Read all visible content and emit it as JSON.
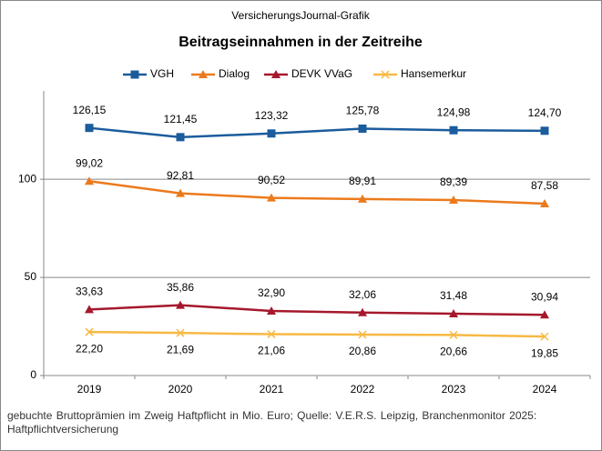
{
  "chart_data": {
    "type": "line",
    "subtitle": "VersicherungsJournal-Grafik",
    "title": "Beitragseinnahmen  in der Zeitreihe",
    "note": "gebuchte Bruttoprämien im Zweig Haftpflicht in Mio. Euro; Quelle: V.E.R.S. Leipzig, Branchenmonitor 2025: Haftpflichtversicherung",
    "categories": [
      "2019",
      "2020",
      "2021",
      "2022",
      "2023",
      "2024"
    ],
    "series": [
      {
        "name": "VGH",
        "color": "#1b5c9c",
        "marker": "square",
        "values": [
          126.15,
          121.45,
          123.32,
          125.78,
          124.98,
          124.7
        ],
        "value_labels": [
          "126,15",
          "121,45",
          "123,32",
          "125,78",
          "124,98",
          "124,70"
        ]
      },
      {
        "name": "Dialog",
        "color": "#ec7a1c",
        "marker": "triangle",
        "values": [
          99.02,
          92.81,
          90.52,
          89.91,
          89.39,
          87.58
        ],
        "value_labels": [
          "99,02",
          "92,81",
          "90,52",
          "89,91",
          "89,39",
          "87,58"
        ]
      },
      {
        "name": "DEVK VVaG",
        "color": "#a5182c",
        "marker": "triangle",
        "values": [
          33.63,
          35.86,
          32.9,
          32.06,
          31.48,
          30.94
        ],
        "value_labels": [
          "33,63",
          "35,86",
          "32,90",
          "32,06",
          "31,48",
          "30,94"
        ]
      },
      {
        "name": "Hansemerkur",
        "color": "#f7b944",
        "marker": "x",
        "values": [
          22.2,
          21.69,
          21.06,
          20.86,
          20.66,
          19.85
        ],
        "value_labels": [
          "22,20",
          "21,69",
          "21,06",
          "20,86",
          "20,66",
          "19,85"
        ]
      }
    ],
    "ylim": [
      0,
      145
    ],
    "yticks": [
      0,
      50,
      100
    ],
    "grid": true,
    "legend": "top"
  }
}
